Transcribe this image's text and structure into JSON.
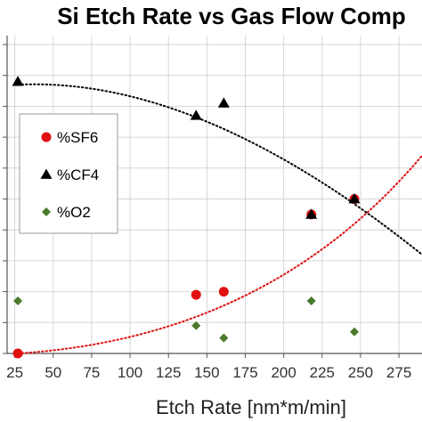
{
  "chart_data": {
    "type": "scatter",
    "title": "Si Etch Rate vs Gas Flow Comp",
    "xlabel": "Etch Rate [nm*m/min]",
    "ylabel": "",
    "xlim": [
      20,
      290
    ],
    "ylim": [
      0,
      100
    ],
    "xticks": [
      25,
      50,
      75,
      100,
      125,
      150,
      175,
      200,
      225,
      250,
      275
    ],
    "grid": true,
    "legend_position": "upper-left",
    "series": [
      {
        "name": "%SF6",
        "marker": "circle",
        "color": "#e01010",
        "points": [
          [
            27,
            0
          ],
          [
            143,
            19
          ],
          [
            161,
            20
          ],
          [
            218,
            45
          ],
          [
            246,
            50
          ]
        ],
        "trend": {
          "color": "#e01010",
          "x": [
            27,
            290
          ],
          "y": [
            0,
            64
          ]
        }
      },
      {
        "name": "%CF4",
        "marker": "triangle",
        "color": "#000000",
        "points": [
          [
            27,
            88
          ],
          [
            143,
            77
          ],
          [
            161,
            81
          ],
          [
            218,
            45
          ],
          [
            246,
            50
          ]
        ],
        "trend": {
          "color": "#000000",
          "x": [
            27,
            290
          ],
          "y": [
            87,
            32
          ]
        }
      },
      {
        "name": "%O2",
        "marker": "diamond",
        "color": "#4a7a2a",
        "points": [
          [
            27,
            17
          ],
          [
            143,
            9
          ],
          [
            161,
            5
          ],
          [
            218,
            17
          ],
          [
            246,
            7
          ]
        ],
        "trend": null
      }
    ]
  }
}
